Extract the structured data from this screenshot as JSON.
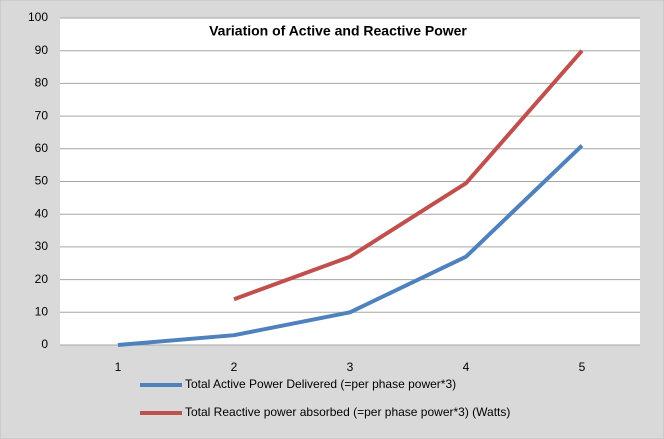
{
  "chart_data": {
    "type": "line",
    "title": "Variation of Active and Reactive Power",
    "categories": [
      "1",
      "2",
      "3",
      "4",
      "5"
    ],
    "series": [
      {
        "name": "Total Active Power Delivered (=per phase power*3)",
        "color": "#4f81bd",
        "values": [
          0,
          3,
          10,
          27,
          61
        ]
      },
      {
        "name": "Total Reactive power absorbed (=per phase power*3) (Watts)",
        "color": "#c0504d",
        "values": [
          null,
          14,
          27,
          49.5,
          90
        ]
      }
    ],
    "ylim": [
      0,
      100
    ],
    "yticks": [
      0,
      10,
      20,
      30,
      40,
      50,
      60,
      70,
      80,
      90,
      100
    ],
    "grid": true,
    "legend": "bottom"
  }
}
